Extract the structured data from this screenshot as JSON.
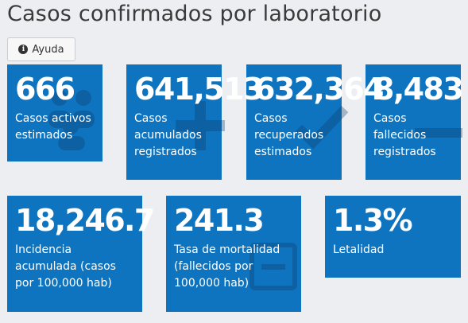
{
  "page": {
    "title": "Casos confirmados por laboratorio"
  },
  "help_button": {
    "label": "Ayuda",
    "icon": "info-icon"
  },
  "cards": [
    {
      "value": "666",
      "label": "Casos activos estimados",
      "icon": "users-icon",
      "color": "#0f74bf"
    },
    {
      "value": "641,513",
      "label": "Casos acumulados registrados",
      "icon": "plus-icon",
      "color": "#0f74bf"
    },
    {
      "value": "632,364",
      "label": "Casos recuperados estimados",
      "icon": "check-icon",
      "color": "#0f74bf"
    },
    {
      "value": "8,483",
      "label": "Casos fallecidos registrados",
      "icon": "minus-icon",
      "color": "#0f74bf"
    },
    {
      "value": "18,246.7",
      "label": "Incidencia acumulada (casos por 100,000 hab)",
      "icon": "",
      "color": "#0f74bf"
    },
    {
      "value": "241.3",
      "label": "Tasa de mortalidad (fallecidos por 100,000 hab)",
      "icon": "minus-square-icon",
      "color": "#0f74bf"
    },
    {
      "value": "1.3%",
      "label": "Letalidad",
      "icon": "",
      "color": "#0f74bf"
    }
  ]
}
